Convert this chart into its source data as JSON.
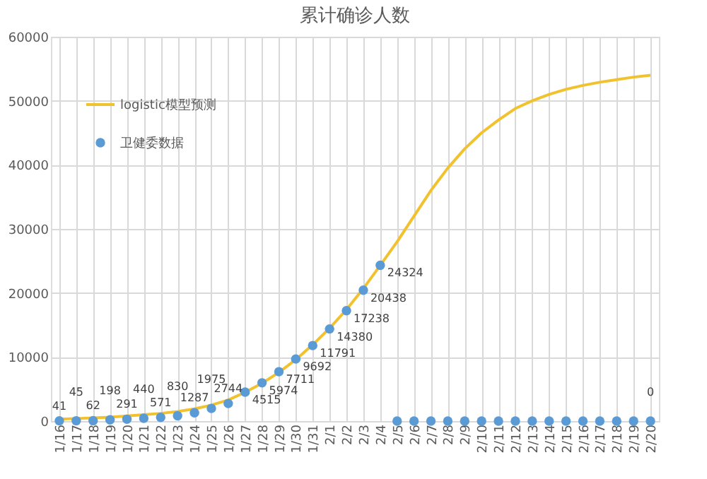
{
  "chart_data": {
    "type": "line",
    "title": "累计确诊人数",
    "categories": [
      "1/16",
      "1/17",
      "1/18",
      "1/19",
      "1/20",
      "1/21",
      "1/22",
      "1/23",
      "1/24",
      "1/25",
      "1/26",
      "1/27",
      "1/28",
      "1/29",
      "1/30",
      "1/31",
      "2/1",
      "2/2",
      "2/3",
      "2/4",
      "2/5",
      "2/6",
      "2/7",
      "2/8",
      "2/9",
      "2/10",
      "2/11",
      "2/12",
      "2/13",
      "2/14",
      "2/15",
      "2/16",
      "2/17",
      "2/18",
      "2/19",
      "2/20"
    ],
    "series": [
      {
        "name": "logistic模型预测",
        "color": "#f2c12e",
        "values": [
          300,
          400,
          500,
          600,
          800,
          1000,
          1200,
          1500,
          1900,
          2500,
          3300,
          4500,
          5900,
          7600,
          9600,
          11900,
          14500,
          17400,
          20700,
          24300,
          28000,
          32000,
          36000,
          39500,
          42500,
          45000,
          47000,
          48800,
          50000,
          51000,
          51800,
          52400,
          52900,
          53300,
          53700,
          54000
        ]
      },
      {
        "name": "卫健委数据",
        "type": "scatter",
        "color": "#5b9bd5",
        "marker": "circle",
        "values": [
          41,
          45,
          62,
          198,
          291,
          440,
          571,
          830,
          1287,
          1975,
          2744,
          4515,
          5974,
          7711,
          9692,
          11791,
          14380,
          17238,
          20438,
          24324,
          0,
          0,
          0,
          0,
          0,
          0,
          0,
          0,
          0,
          0,
          0,
          0,
          0,
          0,
          0,
          0
        ],
        "value_labels": [
          "41",
          "45",
          "62",
          "198",
          "291",
          "440",
          "571",
          "830",
          "1287",
          "1975",
          "2744",
          "4515",
          "5974",
          "7711",
          "9692",
          "11791",
          "14380",
          "17238",
          "20438",
          "24324",
          null,
          null,
          null,
          null,
          null,
          null,
          null,
          null,
          null,
          null,
          null,
          null,
          null,
          null,
          null,
          "0"
        ]
      }
    ],
    "ylim": [
      0,
      60000
    ],
    "yticks": [
      0,
      10000,
      20000,
      30000,
      40000,
      50000,
      60000
    ],
    "grid": true,
    "legend": "top left"
  }
}
